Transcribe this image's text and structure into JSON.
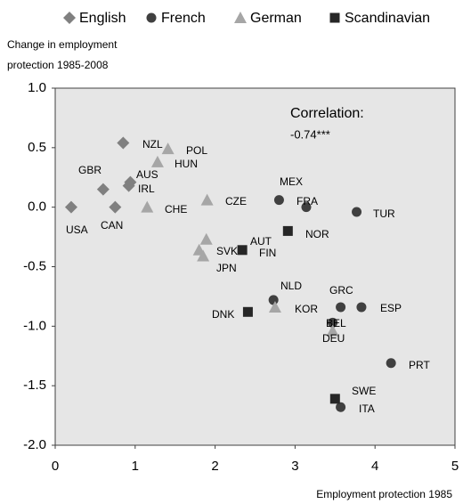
{
  "chart_data": {
    "type": "scatter",
    "y_label": [
      "Change in employment",
      "protection 1985-2008"
    ],
    "x_label": "Employment protection 1985",
    "annotation": [
      "Correlation:",
      "-0.74***"
    ],
    "xlim": [
      0,
      5
    ],
    "xticks": [
      0,
      1,
      2,
      3,
      4,
      5
    ],
    "ylim": [
      -2,
      1
    ],
    "yticks": [
      {
        "value": -2,
        "label": "-2.0"
      },
      {
        "value": -1.5,
        "label": "-1.5"
      },
      {
        "value": -1,
        "label": "-1.0"
      },
      {
        "value": -0.5,
        "label": "-0.5"
      },
      {
        "value": 0,
        "label": "0.0"
      },
      {
        "value": 0.5,
        "label": "0.5"
      },
      {
        "value": 1,
        "label": "1.0"
      }
    ],
    "series": [
      {
        "name": "English",
        "color": "#808080",
        "marker": "diamond",
        "x": [
          0.2,
          0.75,
          0.6,
          0.94,
          0.92,
          0.85
        ],
        "y": [
          0,
          0,
          0.15,
          0.21,
          0.18,
          0.54
        ],
        "labels": [
          "USA",
          "CAN",
          "GBR",
          "AUS",
          "IRL",
          "NZL"
        ]
      },
      {
        "name": "French",
        "color": "#404040",
        "marker": "circle",
        "x": [
          2.8,
          3.14,
          3.77,
          2.73,
          3.57,
          3.83,
          3.47,
          4.2,
          3.57
        ],
        "y": [
          0.06,
          0,
          -0.04,
          -0.78,
          -0.84,
          -0.84,
          -0.97,
          -1.31,
          -1.68
        ],
        "labels": [
          "MEX",
          "FRA",
          "TUR",
          "NLD",
          "GRC",
          "ESP",
          "BEL",
          "PRT",
          "ITA"
        ]
      },
      {
        "name": "German",
        "color": "#a6a6a6",
        "marker": "triangle",
        "x": [
          1.41,
          1.28,
          1.15,
          1.9,
          1.89,
          1.8,
          1.85,
          2.75,
          3.47
        ],
        "y": [
          0.49,
          0.38,
          0,
          0.06,
          -0.27,
          -0.36,
          -0.41,
          -0.84,
          -1.04
        ],
        "labels": [
          "POL",
          "HUN",
          "CHE",
          "CZE",
          "AUT",
          "SVK",
          "JPN",
          "KOR",
          "DEU"
        ]
      },
      {
        "name": "Scandinavian",
        "color": "#262626",
        "marker": "square",
        "x": [
          2.91,
          2.34,
          2.41,
          3.5
        ],
        "y": [
          -0.2,
          -0.36,
          -0.88,
          -1.61
        ],
        "labels": [
          "NOR",
          "FIN",
          "DNK",
          "SWE"
        ]
      }
    ]
  }
}
